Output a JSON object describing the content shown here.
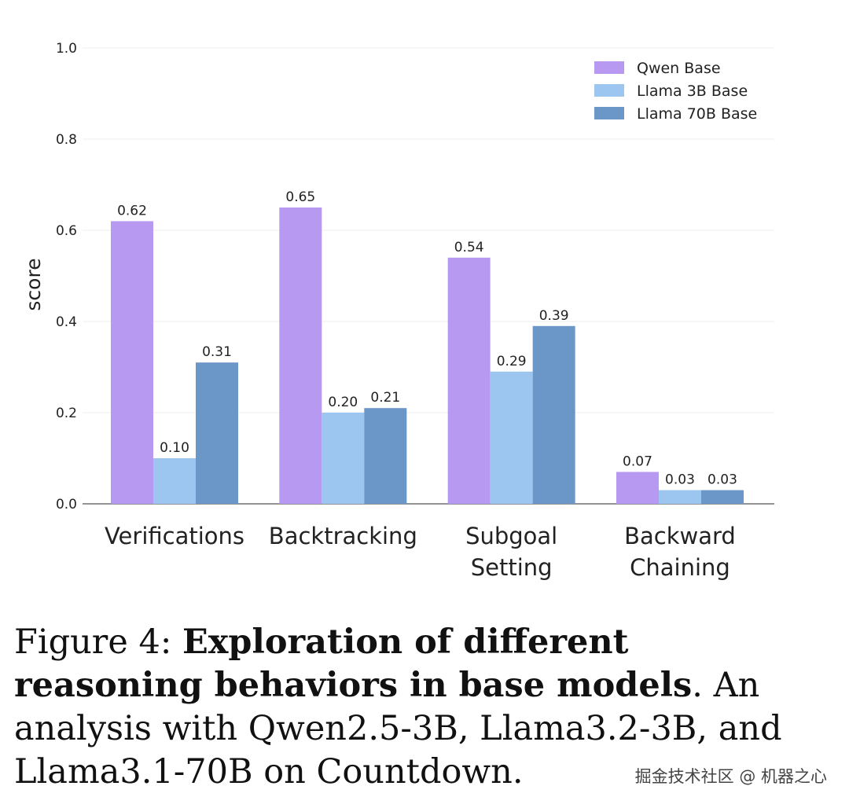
{
  "chart_data": {
    "type": "bar",
    "categories": [
      [
        "Verifications"
      ],
      [
        "Backtracking"
      ],
      [
        "Subgoal",
        "Setting"
      ],
      [
        "Backward",
        "Chaining"
      ]
    ],
    "series": [
      {
        "name": "Qwen Base",
        "color": "#b899f2",
        "values": [
          0.62,
          0.65,
          0.54,
          0.07
        ],
        "labels": [
          "0.62",
          "0.65",
          "0.54",
          "0.07"
        ]
      },
      {
        "name": "Llama 3B Base",
        "color": "#9cc6f0",
        "values": [
          0.1,
          0.2,
          0.29,
          0.03
        ],
        "labels": [
          "0.10",
          "0.20",
          "0.29",
          "0.03"
        ]
      },
      {
        "name": "Llama 70B Base",
        "color": "#6a96c8",
        "values": [
          0.31,
          0.21,
          0.39,
          0.03
        ],
        "labels": [
          "0.31",
          "0.21",
          "0.39",
          "0.03"
        ]
      }
    ],
    "ylabel": "score",
    "ylim": [
      0,
      1.0
    ],
    "yticks": [
      "0.0",
      "0.2",
      "0.4",
      "0.6",
      "0.8",
      "1.0"
    ],
    "grid": true,
    "legend_position": "top-right"
  },
  "caption": {
    "prefix": "Figure 4: ",
    "bold": "Exploration of different reasoning behaviors in base models",
    "rest": ". An analysis with Qwen2.5-3B, Llama3.2-3B, and Llama3.1-70B on Countdown."
  },
  "watermark": "掘金技术社区 @ 机器之心"
}
